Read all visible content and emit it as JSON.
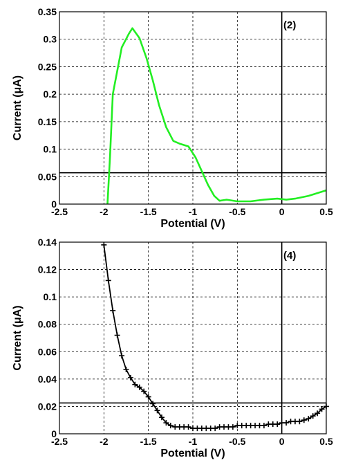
{
  "chart_data": [
    {
      "type": "line",
      "panel_label": "(2)",
      "xlabel": "Potential (V)",
      "ylabel": "Current (μA)",
      "xlim": [
        -2.5,
        0.5
      ],
      "ylim": [
        0,
        0.35
      ],
      "xticks": [
        "-2.5",
        "-2",
        "-1.5",
        "-1",
        "-0.5",
        "0",
        "0.5"
      ],
      "yticks": [
        "0",
        "0.05",
        "0.1",
        "0.15",
        "0.2",
        "0.25",
        "0.3",
        "0.35"
      ],
      "grid": true,
      "reference_lines": {
        "vertical_x": 0,
        "horizontal_y": 0.057
      },
      "series": [
        {
          "color": "#22ee22",
          "marker": "none",
          "x": [
            -1.96,
            -1.93,
            -1.9,
            -1.8,
            -1.72,
            -1.68,
            -1.6,
            -1.52,
            -1.45,
            -1.38,
            -1.3,
            -1.22,
            -1.15,
            -1.05,
            -0.97,
            -0.9,
            -0.83,
            -0.76,
            -0.7,
            -0.62,
            -0.5,
            -0.35,
            -0.2,
            -0.05,
            0.05,
            0.15,
            0.3,
            0.4,
            0.5
          ],
          "y": [
            0.0,
            0.09,
            0.2,
            0.285,
            0.31,
            0.32,
            0.302,
            0.265,
            0.225,
            0.18,
            0.14,
            0.115,
            0.11,
            0.105,
            0.085,
            0.06,
            0.035,
            0.015,
            0.006,
            0.008,
            0.005,
            0.005,
            0.008,
            0.01,
            0.008,
            0.01,
            0.015,
            0.02,
            0.025
          ]
        }
      ]
    },
    {
      "type": "line",
      "panel_label": "(4)",
      "xlabel": "Potential (V)",
      "ylabel": "Current (μA)",
      "xlim": [
        -2.5,
        0.5
      ],
      "ylim": [
        0,
        0.14
      ],
      "xticks": [
        "-2.5",
        "-2",
        "-1.5",
        "-1",
        "-0.5",
        "0",
        "0.5"
      ],
      "yticks": [
        "0",
        "0.02",
        "0.04",
        "0.06",
        "0.08",
        "0.1",
        "0.12",
        "0.14"
      ],
      "grid": true,
      "reference_lines": {
        "vertical_x": 0,
        "horizontal_y": 0.0225
      },
      "series": [
        {
          "color": "#000000",
          "marker": "plus",
          "x": [
            -2.0,
            -1.95,
            -1.9,
            -1.85,
            -1.8,
            -1.75,
            -1.7,
            -1.65,
            -1.6,
            -1.55,
            -1.5,
            -1.45,
            -1.4,
            -1.35,
            -1.3,
            -1.25,
            -1.2,
            -1.15,
            -1.1,
            -1.05,
            -1.0,
            -0.95,
            -0.9,
            -0.85,
            -0.8,
            -0.75,
            -0.7,
            -0.65,
            -0.6,
            -0.55,
            -0.5,
            -0.45,
            -0.4,
            -0.35,
            -0.3,
            -0.25,
            -0.2,
            -0.15,
            -0.1,
            -0.05,
            0.0,
            0.05,
            0.1,
            0.15,
            0.2,
            0.25,
            0.3,
            0.35,
            0.4,
            0.45,
            0.5
          ],
          "y": [
            0.138,
            0.112,
            0.09,
            0.072,
            0.057,
            0.047,
            0.041,
            0.036,
            0.034,
            0.031,
            0.027,
            0.022,
            0.017,
            0.012,
            0.008,
            0.006,
            0.005,
            0.005,
            0.005,
            0.005,
            0.004,
            0.004,
            0.004,
            0.004,
            0.004,
            0.004,
            0.005,
            0.005,
            0.005,
            0.005,
            0.006,
            0.006,
            0.006,
            0.006,
            0.006,
            0.006,
            0.006,
            0.007,
            0.007,
            0.007,
            0.008,
            0.008,
            0.009,
            0.009,
            0.009,
            0.01,
            0.011,
            0.013,
            0.015,
            0.018,
            0.02
          ]
        }
      ]
    }
  ]
}
